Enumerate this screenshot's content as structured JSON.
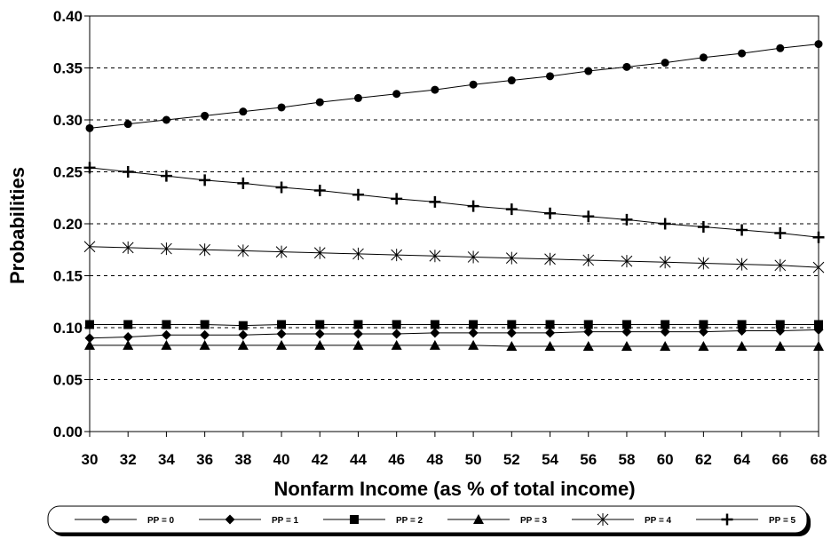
{
  "chart_data": {
    "type": "line",
    "title": "",
    "xlabel": "Nonfarm Income (as % of total income)",
    "ylabel": "Probabilities",
    "xlim": [
      30,
      68
    ],
    "ylim": [
      0,
      0.4
    ],
    "x": [
      30,
      32,
      34,
      36,
      38,
      40,
      42,
      44,
      46,
      48,
      50,
      52,
      54,
      56,
      58,
      60,
      62,
      64,
      66,
      68
    ],
    "x_tick_labels": [
      "30",
      "32",
      "34",
      "36",
      "38",
      "40",
      "42",
      "44",
      "46",
      "48",
      "50",
      "52",
      "54",
      "56",
      "58",
      "60",
      "62",
      "64",
      "66",
      "68"
    ],
    "y_tick_labels": [
      "0.00",
      "0.05",
      "0.10",
      "0.15",
      "0.20",
      "0.25",
      "0.30",
      "0.35",
      "0.40"
    ],
    "grid": "horizontal dashed",
    "legend_position": "bottom",
    "series": [
      {
        "name": "PP = 0",
        "marker": "circle",
        "values": [
          0.292,
          0.296,
          0.3,
          0.304,
          0.308,
          0.312,
          0.317,
          0.321,
          0.325,
          0.329,
          0.334,
          0.338,
          0.342,
          0.347,
          0.351,
          0.355,
          0.36,
          0.364,
          0.369,
          0.373
        ]
      },
      {
        "name": "PP = 1",
        "marker": "diamond",
        "values": [
          0.09,
          0.091,
          0.093,
          0.093,
          0.093,
          0.094,
          0.094,
          0.094,
          0.094,
          0.095,
          0.095,
          0.095,
          0.095,
          0.096,
          0.096,
          0.096,
          0.096,
          0.097,
          0.097,
          0.098
        ]
      },
      {
        "name": "PP = 2",
        "marker": "square",
        "values": [
          0.103,
          0.103,
          0.103,
          0.103,
          0.102,
          0.103,
          0.103,
          0.103,
          0.103,
          0.103,
          0.103,
          0.103,
          0.103,
          0.103,
          0.103,
          0.103,
          0.103,
          0.103,
          0.103,
          0.103
        ]
      },
      {
        "name": "PP = 3",
        "marker": "triangle",
        "values": [
          0.083,
          0.083,
          0.083,
          0.083,
          0.083,
          0.083,
          0.083,
          0.083,
          0.083,
          0.083,
          0.083,
          0.082,
          0.082,
          0.082,
          0.082,
          0.082,
          0.082,
          0.082,
          0.082,
          0.082
        ]
      },
      {
        "name": "PP = 4",
        "marker": "star",
        "values": [
          0.178,
          0.177,
          0.176,
          0.175,
          0.174,
          0.173,
          0.172,
          0.171,
          0.17,
          0.169,
          0.168,
          0.167,
          0.166,
          0.165,
          0.164,
          0.163,
          0.162,
          0.161,
          0.16,
          0.158
        ]
      },
      {
        "name": "PP = 5",
        "marker": "plus",
        "values": [
          0.254,
          0.25,
          0.246,
          0.242,
          0.239,
          0.235,
          0.232,
          0.228,
          0.224,
          0.221,
          0.217,
          0.214,
          0.21,
          0.207,
          0.204,
          0.2,
          0.197,
          0.194,
          0.191,
          0.187
        ]
      }
    ]
  }
}
